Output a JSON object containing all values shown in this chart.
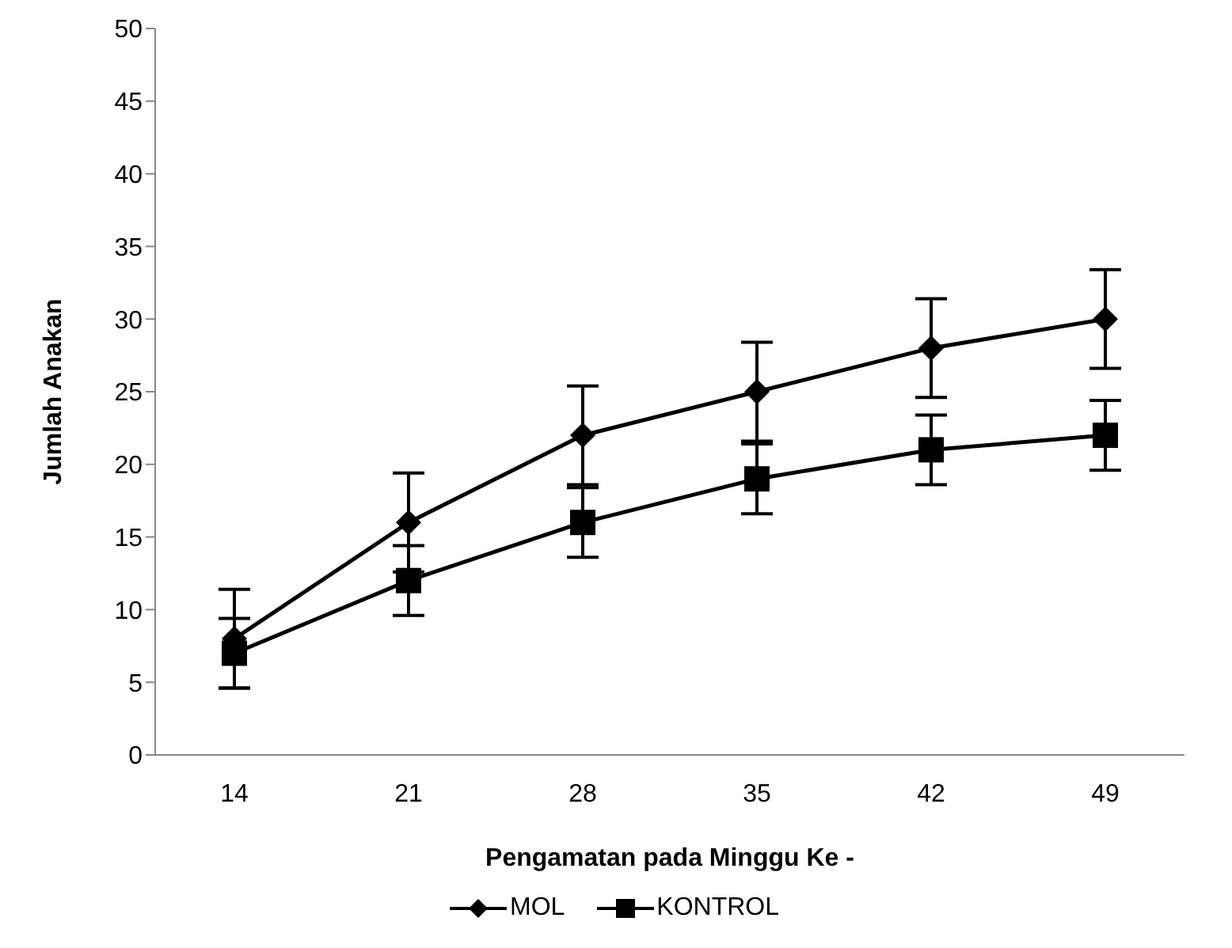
{
  "chart_data": {
    "type": "line",
    "xlabel": "Pengamatan pada Minggu Ke -",
    "ylabel": "Jumlah Anakan",
    "categories": [
      "14",
      "21",
      "28",
      "35",
      "42",
      "49"
    ],
    "ylim": [
      0,
      50
    ],
    "yticks": [
      0,
      5,
      10,
      15,
      20,
      25,
      30,
      35,
      40,
      45,
      50
    ],
    "grid": false,
    "legend": "bottom",
    "series": [
      {
        "name": "MOL",
        "color": "#000000",
        "marker": "diamond",
        "values": [
          8,
          16,
          22,
          25,
          28,
          30
        ],
        "errors": [
          3.4,
          3.4,
          3.4,
          3.4,
          3.4,
          3.4
        ]
      },
      {
        "name": "KONTROL",
        "color": "#000000",
        "marker": "square",
        "values": [
          7,
          12,
          16,
          19,
          21,
          22
        ],
        "errors": [
          2.4,
          2.4,
          2.4,
          2.4,
          2.4,
          2.4
        ]
      }
    ]
  }
}
